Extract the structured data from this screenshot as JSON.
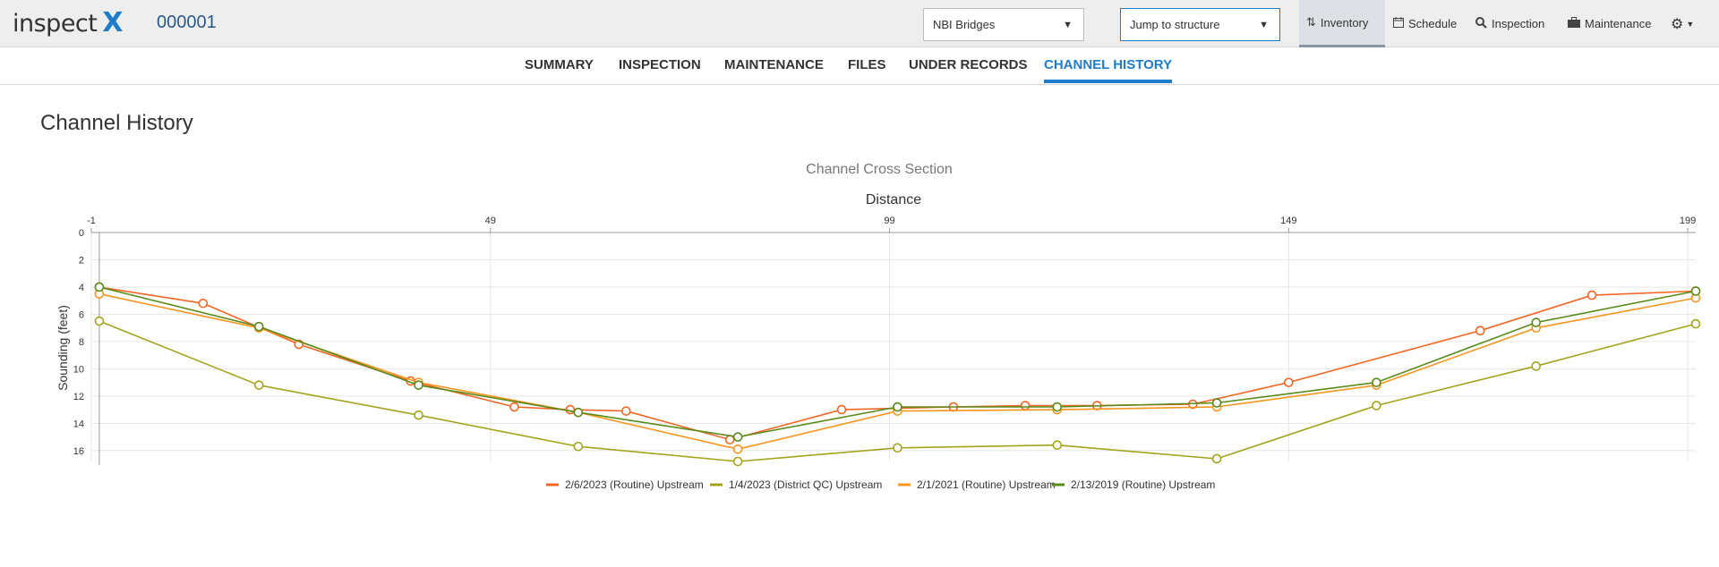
{
  "header": {
    "logo_text": "inspect",
    "logo_mark": "X",
    "structure_id": "000001",
    "program_select": "NBI Bridges",
    "jump_select": "Jump to structure",
    "nav": {
      "inventory": "Inventory",
      "schedule": "Schedule",
      "inspection": "Inspection",
      "maintenance": "Maintenance"
    }
  },
  "tabs": [
    "SUMMARY",
    "INSPECTION",
    "MAINTENANCE",
    "FILES",
    "UNDER RECORDS",
    "CHANNEL HISTORY"
  ],
  "active_tab": "CHANNEL HISTORY",
  "page_title": "Channel History",
  "colors": {
    "accent": "#1e7cc8"
  },
  "chart_data": {
    "type": "line",
    "title": "Channel Cross Section",
    "xlabel": "Distance",
    "ylabel": "Sounding (feet)",
    "xlim": [
      -1,
      200
    ],
    "ylim": [
      0,
      16.8
    ],
    "y_inverted": true,
    "x_axis_position": "top",
    "xticks": [
      -1,
      49,
      99,
      149,
      199
    ],
    "yticks": [
      0,
      2,
      4,
      6,
      8,
      10,
      12,
      14,
      16
    ],
    "grid": true,
    "legend": "bottom",
    "series": [
      {
        "name": "2/6/2023 (Routine) Upstream",
        "color": "#f26522",
        "points": [
          [
            0,
            4.0
          ],
          [
            13,
            5.2
          ],
          [
            25,
            8.2
          ],
          [
            39,
            10.9
          ],
          [
            52,
            12.8
          ],
          [
            59,
            13.0
          ],
          [
            66,
            13.1
          ],
          [
            79,
            15.2
          ],
          [
            93,
            13.0
          ],
          [
            107,
            12.8
          ],
          [
            116,
            12.7
          ],
          [
            125,
            12.7
          ],
          [
            137,
            12.6
          ],
          [
            149,
            11.0
          ],
          [
            173,
            7.2
          ],
          [
            187,
            4.6
          ],
          [
            200,
            4.3
          ]
        ]
      },
      {
        "name": "1/4/2023 (District QC) Upstream",
        "color": "#a3a41c",
        "points": [
          [
            0,
            6.5
          ],
          [
            20,
            11.2
          ],
          [
            40,
            13.4
          ],
          [
            60,
            15.7
          ],
          [
            80,
            16.8
          ],
          [
            100,
            15.8
          ],
          [
            120,
            15.6
          ],
          [
            140,
            16.6
          ],
          [
            160,
            12.7
          ],
          [
            180,
            9.8
          ],
          [
            200,
            6.7
          ]
        ]
      },
      {
        "name": "2/1/2021 (Routine) Upstream",
        "color": "#f7941d",
        "points": [
          [
            0,
            4.5
          ],
          [
            20,
            7.0
          ],
          [
            40,
            11.0
          ],
          [
            60,
            13.2
          ],
          [
            80,
            15.9
          ],
          [
            100,
            13.1
          ],
          [
            120,
            13.0
          ],
          [
            140,
            12.8
          ],
          [
            160,
            11.2
          ],
          [
            180,
            7.0
          ],
          [
            200,
            4.8
          ]
        ]
      },
      {
        "name": "2/13/2019 (Routine) Upstream",
        "color": "#5a8a1a",
        "points": [
          [
            0,
            4.0
          ],
          [
            20,
            6.9
          ],
          [
            40,
            11.2
          ],
          [
            60,
            13.2
          ],
          [
            80,
            15.0
          ],
          [
            100,
            12.8
          ],
          [
            120,
            12.8
          ],
          [
            140,
            12.5
          ],
          [
            160,
            11.0
          ],
          [
            180,
            6.6
          ],
          [
            200,
            4.3
          ]
        ]
      }
    ]
  }
}
